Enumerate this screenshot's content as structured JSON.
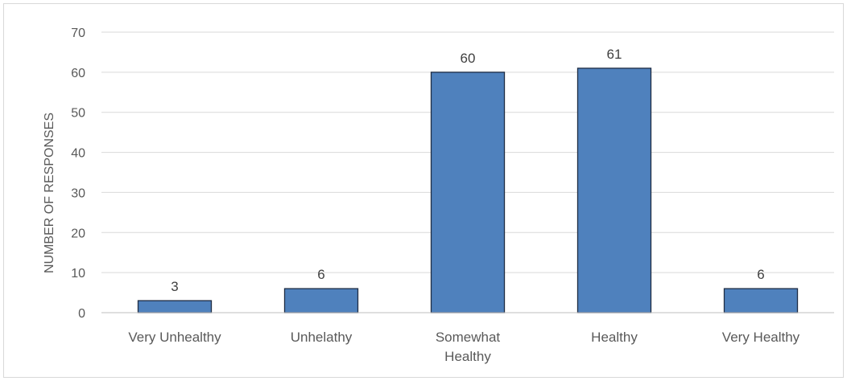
{
  "chart_data": {
    "type": "bar",
    "categories": [
      [
        "Very Unhealthy"
      ],
      [
        "Unhelathy"
      ],
      [
        "Somewhat",
        "Healthy"
      ],
      [
        "Healthy"
      ],
      [
        "Very Healthy"
      ]
    ],
    "values": [
      3,
      6,
      60,
      61,
      6
    ],
    "data_labels": [
      "3",
      "6",
      "60",
      "61",
      "6"
    ],
    "ylabel": "NUMBER OF RESPONSES",
    "ylim": [
      0,
      70
    ],
    "yticks": [
      0,
      10,
      20,
      30,
      40,
      50,
      60,
      70
    ],
    "grid": true,
    "legend": "none",
    "colors": {
      "bar": "#4f81bd",
      "bar_edge": "#1f2d44"
    }
  }
}
